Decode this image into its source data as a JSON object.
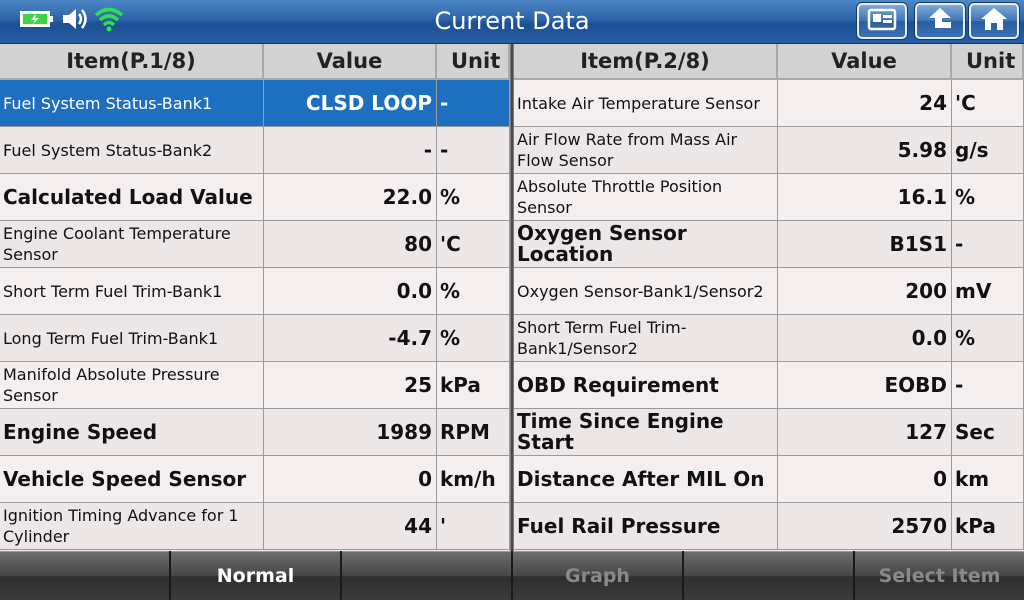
{
  "header": {
    "title": "Current Data",
    "status_icons": [
      "battery-icon",
      "speaker-icon",
      "wifi-icon"
    ],
    "buttons": [
      "screenshot-icon",
      "back-icon",
      "home-icon"
    ]
  },
  "left_table": {
    "headers": {
      "item": "Item(P.1/8)",
      "value": "Value",
      "unit": "Unit"
    },
    "rows": [
      {
        "item": "Fuel System Status-Bank1",
        "value": "CLSD LOOP",
        "unit": "-"
      },
      {
        "item": "Fuel System Status-Bank2",
        "value": "-",
        "unit": "-"
      },
      {
        "item": "Calculated Load Value",
        "value": "22.0",
        "unit": "%"
      },
      {
        "item": "Engine Coolant Temperature Sensor",
        "value": "80",
        "unit": "'C"
      },
      {
        "item": "Short Term Fuel Trim-Bank1",
        "value": "0.0",
        "unit": "%"
      },
      {
        "item": "Long Term Fuel Trim-Bank1",
        "value": "-4.7",
        "unit": "%"
      },
      {
        "item": "Manifold Absolute Pressure Sensor",
        "value": "25",
        "unit": "kPa"
      },
      {
        "item": "Engine Speed",
        "value": "1989",
        "unit": "RPM"
      },
      {
        "item": "Vehicle Speed Sensor",
        "value": "0",
        "unit": "km/h"
      },
      {
        "item": "Ignition Timing Advance for 1 Cylinder",
        "value": "44",
        "unit": "'"
      }
    ]
  },
  "right_table": {
    "headers": {
      "item": "Item(P.2/8)",
      "value": "Value",
      "unit": "Unit"
    },
    "rows": [
      {
        "item": "Intake Air Temperature Sensor",
        "value": "24",
        "unit": "'C"
      },
      {
        "item": "Air Flow Rate from Mass Air Flow Sensor",
        "value": "5.98",
        "unit": "g/s"
      },
      {
        "item": "Absolute Throttle Position Sensor",
        "value": "16.1",
        "unit": "%"
      },
      {
        "item": "Oxygen Sensor Location",
        "value": "B1S1",
        "unit": "-"
      },
      {
        "item": "Oxygen Sensor-Bank1/Sensor2",
        "value": "200",
        "unit": "mV"
      },
      {
        "item": "Short Term Fuel Trim-Bank1/Sensor2",
        "value": "0.0",
        "unit": "%"
      },
      {
        "item": "OBD Requirement",
        "value": "EOBD",
        "unit": "-"
      },
      {
        "item": "Time Since Engine Start",
        "value": "127",
        "unit": "Sec"
      },
      {
        "item": "Distance After MIL On",
        "value": "0",
        "unit": "km"
      },
      {
        "item": "Fuel Rail Pressure",
        "value": "2570",
        "unit": "kPa"
      }
    ]
  },
  "toolbar": {
    "buttons": [
      {
        "label": ""
      },
      {
        "label": "Normal"
      },
      {
        "label": ""
      },
      {
        "label": "Graph"
      },
      {
        "label": ""
      },
      {
        "label": "Select Item"
      }
    ]
  },
  "colors": {
    "selected_row": "#1f6fc0",
    "title_bar": "#2d64a8",
    "battery": "#3fd34a",
    "wifi": "#2ee04a"
  }
}
